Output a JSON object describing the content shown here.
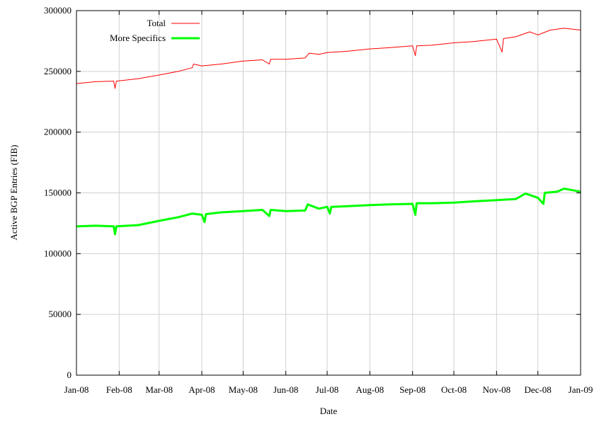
{
  "chart_data": {
    "type": "line",
    "title": "",
    "xlabel": "Date",
    "ylabel": "Active BGP Entries (FIB)",
    "xlim": [
      "2008-01-01",
      "2009-01-01"
    ],
    "ylim": [
      0,
      300000
    ],
    "grid": true,
    "legend_position": "top-left",
    "x_ticks": [
      {
        "date": "2008-01-01",
        "label": "Jan-08"
      },
      {
        "date": "2008-02-01",
        "label": "Feb-08"
      },
      {
        "date": "2008-03-01",
        "label": "Mar-08"
      },
      {
        "date": "2008-04-01",
        "label": "Apr-08"
      },
      {
        "date": "2008-05-01",
        "label": "May-08"
      },
      {
        "date": "2008-06-01",
        "label": "Jun-08"
      },
      {
        "date": "2008-07-01",
        "label": "Jul-08"
      },
      {
        "date": "2008-08-01",
        "label": "Aug-08"
      },
      {
        "date": "2008-09-01",
        "label": "Sep-08"
      },
      {
        "date": "2008-10-01",
        "label": "Oct-08"
      },
      {
        "date": "2008-11-01",
        "label": "Nov-08"
      },
      {
        "date": "2008-12-01",
        "label": "Dec-08"
      },
      {
        "date": "2009-01-01",
        "label": "Jan-09"
      }
    ],
    "y_ticks": [
      {
        "value": 0,
        "label": "0"
      },
      {
        "value": 50000,
        "label": "50000"
      },
      {
        "value": 100000,
        "label": "100000"
      },
      {
        "value": 150000,
        "label": "150000"
      },
      {
        "value": 200000,
        "label": "200000"
      },
      {
        "value": 250000,
        "label": "250000"
      },
      {
        "value": 300000,
        "label": "300000"
      }
    ],
    "series": [
      {
        "name": "Total",
        "color": "#ff0000",
        "points": [
          [
            "2008-01-01",
            240000
          ],
          [
            "2008-01-15",
            241500
          ],
          [
            "2008-01-28",
            242000
          ],
          [
            "2008-01-29",
            236000
          ],
          [
            "2008-01-30",
            242000
          ],
          [
            "2008-02-15",
            244000
          ],
          [
            "2008-03-01",
            247000
          ],
          [
            "2008-03-15",
            250000
          ],
          [
            "2008-03-25",
            253000
          ],
          [
            "2008-03-26",
            256000
          ],
          [
            "2008-04-01",
            254500
          ],
          [
            "2008-04-15",
            256000
          ],
          [
            "2008-05-01",
            258500
          ],
          [
            "2008-05-15",
            259500
          ],
          [
            "2008-05-20",
            256000
          ],
          [
            "2008-05-21",
            260000
          ],
          [
            "2008-06-01",
            260000
          ],
          [
            "2008-06-15",
            261000
          ],
          [
            "2008-06-18",
            265000
          ],
          [
            "2008-06-25",
            264000
          ],
          [
            "2008-07-01",
            265500
          ],
          [
            "2008-07-15",
            266500
          ],
          [
            "2008-08-01",
            268500
          ],
          [
            "2008-08-15",
            269500
          ],
          [
            "2008-09-01",
            271000
          ],
          [
            "2008-09-03",
            263000
          ],
          [
            "2008-09-04",
            271000
          ],
          [
            "2008-09-15",
            271500
          ],
          [
            "2008-10-01",
            273500
          ],
          [
            "2008-10-15",
            274500
          ],
          [
            "2008-11-01",
            276500
          ],
          [
            "2008-11-05",
            266000
          ],
          [
            "2008-11-06",
            277000
          ],
          [
            "2008-11-15",
            278500
          ],
          [
            "2008-11-25",
            282500
          ],
          [
            "2008-12-01",
            280000
          ],
          [
            "2008-12-10",
            284000
          ],
          [
            "2008-12-20",
            285500
          ],
          [
            "2009-01-01",
            284000
          ]
        ]
      },
      {
        "name": "More Specifics",
        "color": "#00ff00",
        "points": [
          [
            "2008-01-01",
            122500
          ],
          [
            "2008-01-15",
            123000
          ],
          [
            "2008-01-28",
            122500
          ],
          [
            "2008-01-29",
            116000
          ],
          [
            "2008-01-30",
            122500
          ],
          [
            "2008-02-15",
            123500
          ],
          [
            "2008-03-01",
            127000
          ],
          [
            "2008-03-15",
            130000
          ],
          [
            "2008-03-25",
            133000
          ],
          [
            "2008-04-01",
            132000
          ],
          [
            "2008-04-03",
            126000
          ],
          [
            "2008-04-04",
            132500
          ],
          [
            "2008-04-15",
            134000
          ],
          [
            "2008-05-01",
            135000
          ],
          [
            "2008-05-15",
            136000
          ],
          [
            "2008-05-20",
            131000
          ],
          [
            "2008-05-21",
            136000
          ],
          [
            "2008-06-01",
            135000
          ],
          [
            "2008-06-15",
            135500
          ],
          [
            "2008-06-17",
            140500
          ],
          [
            "2008-06-25",
            137000
          ],
          [
            "2008-07-01",
            138500
          ],
          [
            "2008-07-03",
            133000
          ],
          [
            "2008-07-04",
            138500
          ],
          [
            "2008-07-15",
            139000
          ],
          [
            "2008-08-01",
            140000
          ],
          [
            "2008-08-15",
            140500
          ],
          [
            "2008-09-01",
            141000
          ],
          [
            "2008-09-03",
            132000
          ],
          [
            "2008-09-04",
            141500
          ],
          [
            "2008-09-15",
            141500
          ],
          [
            "2008-10-01",
            142000
          ],
          [
            "2008-10-15",
            143000
          ],
          [
            "2008-11-01",
            144000
          ],
          [
            "2008-11-15",
            145000
          ],
          [
            "2008-11-22",
            149500
          ],
          [
            "2008-12-01",
            146000
          ],
          [
            "2008-12-05",
            141000
          ],
          [
            "2008-12-06",
            150000
          ],
          [
            "2008-12-15",
            151000
          ],
          [
            "2008-12-20",
            153500
          ],
          [
            "2009-01-01",
            151000
          ]
        ]
      }
    ]
  }
}
